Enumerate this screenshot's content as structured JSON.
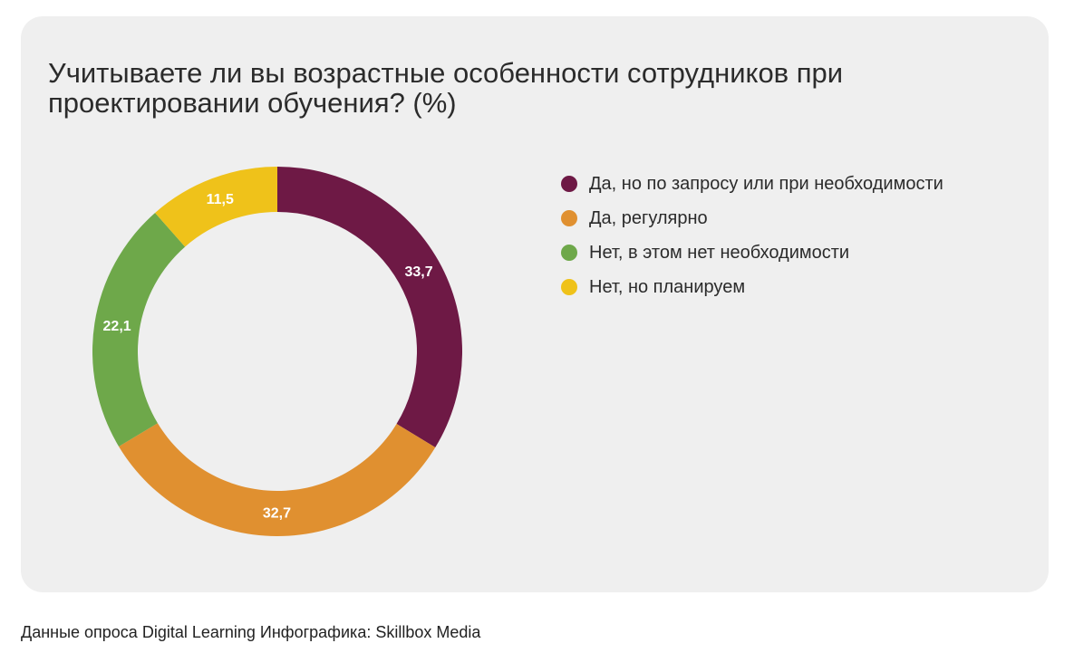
{
  "chart_data": {
    "type": "pie",
    "variant": "donut",
    "title": "Учитываете ли вы возрастные особенности сотрудников при проектировании обучения? (%)",
    "title_lines": [
      "Учитываете ли вы возрастные особенности сотрудников при",
      "проектировании обучения? (%)"
    ],
    "categories": [
      "Да, но по запросу или при необходимости",
      "Да, регулярно",
      "Нет, в этом нет необходимости",
      "Нет, но планируем"
    ],
    "values": [
      33.7,
      32.7,
      22.1,
      11.5
    ],
    "value_labels": [
      "33,7",
      "32,7",
      "22,1",
      "11,5"
    ],
    "colors": [
      "#6e1945",
      "#e09030",
      "#6ea84a",
      "#efc21a"
    ],
    "legend_position": "right",
    "start": "top",
    "direction": "clockwise"
  },
  "caption": "Данные опроса Digital Learning Инфографика: Skillbox Media"
}
